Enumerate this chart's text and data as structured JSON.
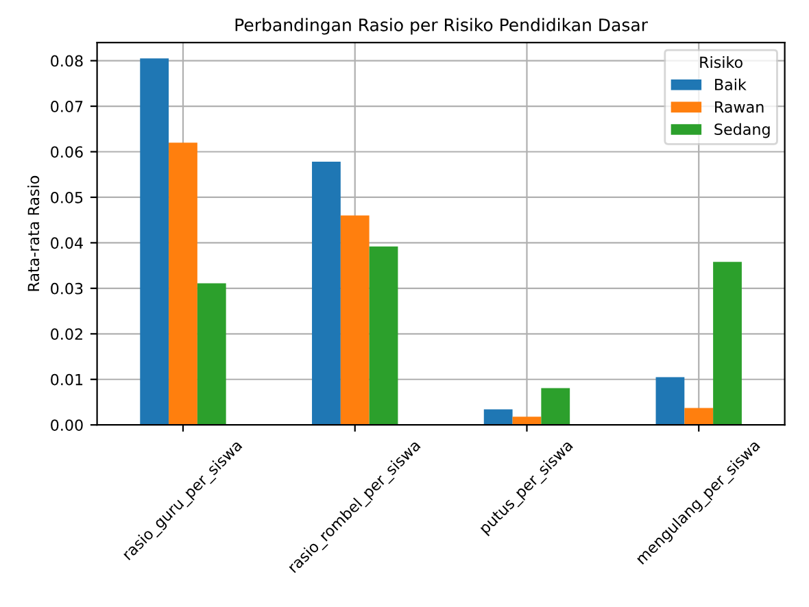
{
  "chart_data": {
    "type": "bar",
    "title": "Perbandingan Rasio per Risiko Pendidikan Dasar",
    "ylabel": "Rata-rata Rasio",
    "legend_title": "Risiko",
    "categories": [
      "rasio_guru_per_siswa",
      "rasio_rombel_per_siswa",
      "putus_per_siswa",
      "mengulang_per_siswa"
    ],
    "series": [
      {
        "name": "Baik",
        "color": "#1f77b4",
        "values": [
          0.0805,
          0.0578,
          0.0034,
          0.0105
        ]
      },
      {
        "name": "Rawan",
        "color": "#ff7f0e",
        "values": [
          0.062,
          0.046,
          0.0018,
          0.0037
        ]
      },
      {
        "name": "Sedang",
        "color": "#2ca02c",
        "values": [
          0.0311,
          0.0392,
          0.0081,
          0.0358
        ]
      }
    ],
    "ylim": [
      0,
      0.084
    ],
    "yticks": [
      {
        "value": 0,
        "label": "0.00"
      },
      {
        "value": 0.01,
        "label": "0.01"
      },
      {
        "value": 0.02,
        "label": "0.02"
      },
      {
        "value": 0.03,
        "label": "0.03"
      },
      {
        "value": 0.04,
        "label": "0.04"
      },
      {
        "value": 0.05,
        "label": "0.05"
      },
      {
        "value": 0.06,
        "label": "0.06"
      },
      {
        "value": 0.07,
        "label": "0.07"
      },
      {
        "value": 0.08,
        "label": "0.08"
      }
    ],
    "grid": true,
    "legend": "top right"
  }
}
